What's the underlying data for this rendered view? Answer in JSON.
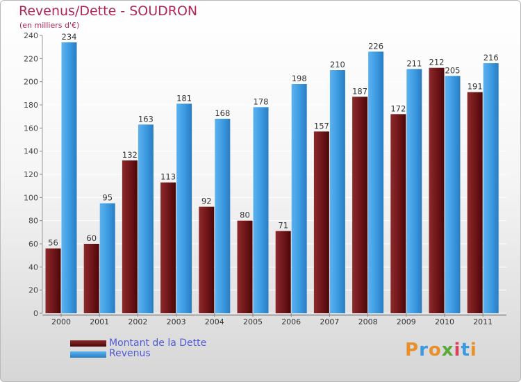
{
  "title": "Revenus/Dette - SOUDRON",
  "subtitle": "(en milliers d'€)",
  "brand": "Proxiti",
  "colors": {
    "dette": "#6e1518",
    "revenus": "#3b99e0",
    "title": "#b0245a",
    "legend_text": "#4f5ad6"
  },
  "chart_data": {
    "type": "bar",
    "title": "Revenus/Dette - SOUDRON",
    "subtitle": "(en milliers d'€)",
    "xlabel": "",
    "ylabel": "",
    "ylim": [
      0,
      240
    ],
    "yticks": [
      0,
      20,
      40,
      60,
      80,
      100,
      120,
      140,
      160,
      180,
      200,
      220,
      240
    ],
    "categories": [
      "2000",
      "2001",
      "2002",
      "2003",
      "2004",
      "2005",
      "2006",
      "2007",
      "2008",
      "2009",
      "2010",
      "2011"
    ],
    "series": [
      {
        "name": "Montant de la Dette",
        "values": [
          56,
          60,
          132,
          113,
          92,
          80,
          71,
          157,
          187,
          172,
          212,
          191
        ]
      },
      {
        "name": "Revenus",
        "values": [
          234,
          95,
          163,
          181,
          168,
          178,
          198,
          210,
          226,
          211,
          205,
          216
        ]
      }
    ],
    "legend": "bottom-left"
  }
}
